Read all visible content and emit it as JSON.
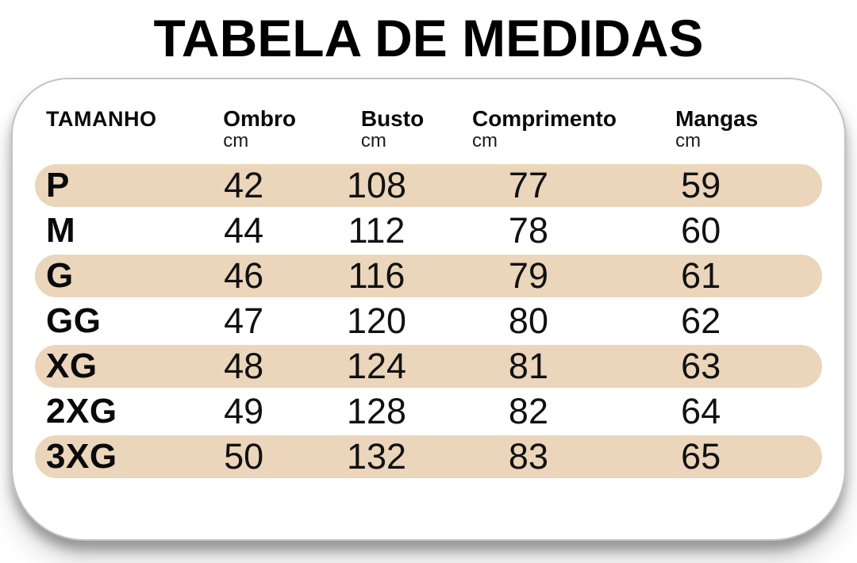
{
  "title": "TABELA DE MEDIDAS",
  "card": {
    "header": {
      "size_label": "TAMANHO",
      "columns": [
        {
          "label": "Ombro",
          "unit": "cm"
        },
        {
          "label": "Busto",
          "unit": "cm"
        },
        {
          "label": "Comprimento",
          "unit": "cm"
        },
        {
          "label": "Mangas",
          "unit": "cm"
        }
      ]
    },
    "rows": [
      {
        "size": "P",
        "values": [
          "42",
          "108",
          "77",
          "59"
        ],
        "highlighted": true
      },
      {
        "size": "M",
        "values": [
          "44",
          "112",
          "78",
          "60"
        ],
        "highlighted": false
      },
      {
        "size": "G",
        "values": [
          "46",
          "116",
          "79",
          "61"
        ],
        "highlighted": true
      },
      {
        "size": "GG",
        "values": [
          "47",
          "120",
          "80",
          "62"
        ],
        "highlighted": false
      },
      {
        "size": "XG",
        "values": [
          "48",
          "124",
          "81",
          "63"
        ],
        "highlighted": true
      },
      {
        "size": "2XG",
        "values": [
          "49",
          "128",
          "82",
          "64"
        ],
        "highlighted": false
      },
      {
        "size": "3XG",
        "values": [
          "50",
          "132",
          "83",
          "65"
        ],
        "highlighted": true
      }
    ]
  },
  "colors": {
    "highlight_row": "#ebd5bb",
    "card_background": "#ffffff",
    "card_border": "#c3c3c3",
    "text": "#0a0a0a"
  },
  "chart_data": {
    "type": "table",
    "title": "TABELA DE MEDIDAS",
    "columns": [
      "TAMANHO",
      "Ombro (cm)",
      "Busto (cm)",
      "Comprimento (cm)",
      "Mangas (cm)"
    ],
    "rows": [
      [
        "P",
        42,
        108,
        77,
        59
      ],
      [
        "M",
        44,
        112,
        78,
        60
      ],
      [
        "G",
        46,
        116,
        79,
        61
      ],
      [
        "GG",
        47,
        120,
        80,
        62
      ],
      [
        "XG",
        48,
        124,
        81,
        63
      ],
      [
        "2XG",
        49,
        128,
        82,
        64
      ],
      [
        "3XG",
        50,
        132,
        83,
        65
      ]
    ]
  }
}
